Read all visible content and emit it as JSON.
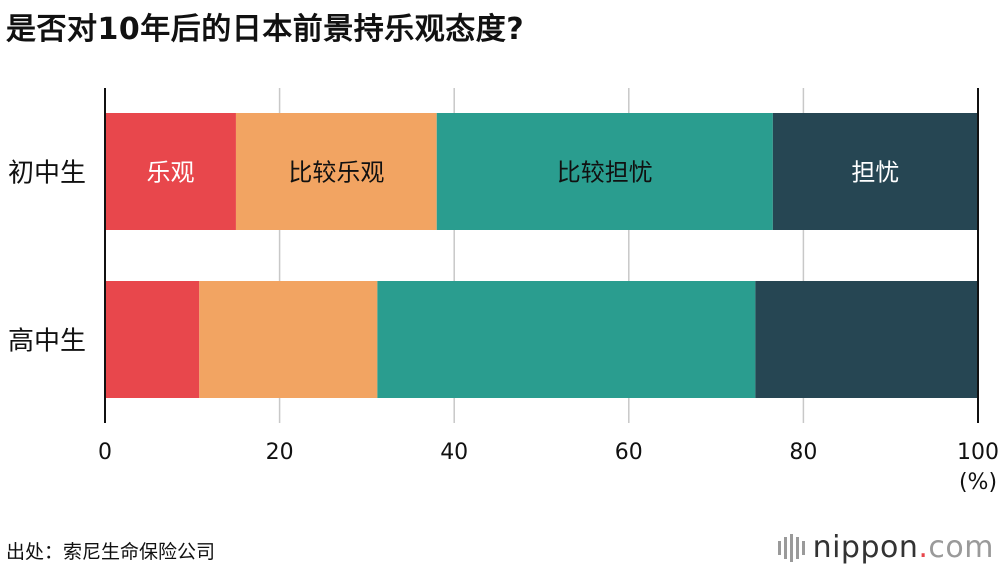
{
  "title": "是否对10年后的日本前景持乐观态度?",
  "source": "出处：索尼生命保险公司",
  "logo": {
    "name": "nippon",
    "dot": ".",
    "tld": "com"
  },
  "colors": {
    "optimistic": "#e8474c",
    "somewhat_optimistic": "#f2a462",
    "somewhat_worried": "#2a9d8f",
    "worried": "#264653"
  },
  "chart_data": {
    "type": "bar",
    "orientation": "horizontal",
    "stacked": true,
    "categories": [
      "初中生",
      "高中生"
    ],
    "series": [
      {
        "name": "乐观",
        "values": [
          15.0,
          10.8
        ],
        "color": "#e8474c",
        "label_color": "#ffffff"
      },
      {
        "name": "比较乐观",
        "values": [
          23.0,
          20.4
        ],
        "color": "#f2a462",
        "label_color": "#111111"
      },
      {
        "name": "比较担忧",
        "values": [
          38.5,
          43.3
        ],
        "color": "#2a9d8f",
        "label_color": "#111111"
      },
      {
        "name": "担忧",
        "values": [
          23.5,
          25.5
        ],
        "color": "#264653",
        "label_color": "#ffffff"
      }
    ],
    "xlim": [
      0,
      100
    ],
    "xticks": [
      0,
      20,
      40,
      60,
      80,
      100
    ],
    "xunit": "(%)",
    "grid": true,
    "segment_labels_on_category": 0
  }
}
